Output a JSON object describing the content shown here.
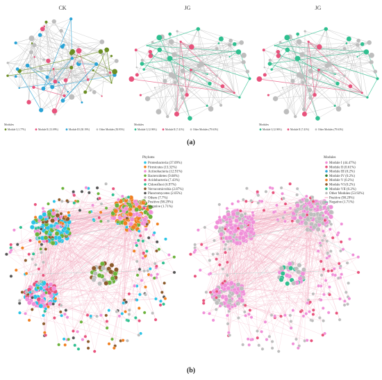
{
  "colors": {
    "gray": "#bdbdbd",
    "blue": "#29a3d6",
    "pink": "#e8527c",
    "green": "#2ebf8f",
    "olive": "#6b8e23",
    "lightpink": "#f2a3c0",
    "edge_pink": "#f0a0b8",
    "edge_teal": "#4fb9a8"
  },
  "panel_a": {
    "label": "(a)",
    "networks": [
      {
        "title": "CK",
        "legend_title": "Modules",
        "legend": [
          {
            "label": "Module I (1.77%)",
            "color": "#6b8e23"
          },
          {
            "label": "Module II (13.09%)",
            "color": "#e8527c"
          },
          {
            "label": "Module III (30.19%)",
            "color": "#29a3d6"
          },
          {
            "label": "Other Modules (50.95%)",
            "color": "#bdbdbd"
          }
        ]
      },
      {
        "title": "JG",
        "legend_title": "Modules",
        "legend": [
          {
            "label": "Module I (12.96%)",
            "color": "#2ebf8f"
          },
          {
            "label": "Module II (7.41%)",
            "color": "#e8527c"
          },
          {
            "label": "Other Modules (79.63%)",
            "color": "#bdbdbd"
          }
        ]
      },
      {
        "title": "JG",
        "legend_title": "Modules",
        "legend": [
          {
            "label": "Module I (12.96%)",
            "color": "#2ebf8f"
          },
          {
            "label": "Module II (7.41%)",
            "color": "#e8527c"
          },
          {
            "label": "Other Modules (79.63%)",
            "color": "#bdbdbd"
          }
        ]
      }
    ]
  },
  "panel_b": {
    "label": "(b)",
    "left": {
      "legend_title": "Phylums",
      "legend": [
        {
          "label": "Proteobacteria (37.09%)",
          "color": "#29c4e6"
        },
        {
          "label": "Firmicutes (13.32%)",
          "color": "#f07f20"
        },
        {
          "label": "Actinobacteria (12.91%)",
          "color": "#f08fd8"
        },
        {
          "label": "Bacteroidetes (9.68%)",
          "color": "#6ab23a"
        },
        {
          "label": "Acidobacteria (7.43%)",
          "color": "#e8527c"
        },
        {
          "label": "Chloroflexi (6.97%)",
          "color": "#2ebf8f"
        },
        {
          "label": "Verrucomicrobia (2.87%)",
          "color": "#8b5a2b"
        },
        {
          "label": "Planctomycetes (2.05%)",
          "color": "#555555"
        },
        {
          "label": "Others (7.7%)",
          "color": "#bdbdbd"
        },
        {
          "label": "Positive (98.29%)",
          "color": "#f0a0b8",
          "line": true
        },
        {
          "label": "Negative (1.71%)",
          "color": "#2ebf8f",
          "line": true
        }
      ]
    },
    "right": {
      "legend_title": "Modules",
      "legend": [
        {
          "label": "Module I (44.47%)",
          "color": "#f08fd8"
        },
        {
          "label": "Module II (0.61%)",
          "color": "#e8527c"
        },
        {
          "label": "Module III (0.2%)",
          "color": "#29a3d6"
        },
        {
          "label": "Module IV (0.2%)",
          "color": "#2e7d32"
        },
        {
          "label": "Module V (0.2%)",
          "color": "#f07f20"
        },
        {
          "label": "Module VI (0.2%)",
          "color": "#8b5a2b"
        },
        {
          "label": "Module VII (0.2%)",
          "color": "#2ebf8f"
        },
        {
          "label": "Other Modules (53.92%)",
          "color": "#bdbdbd"
        },
        {
          "label": "Positive (98.29%)",
          "color": "#f0a0b8",
          "line": true
        },
        {
          "label": "Negative (1.71%)",
          "color": "#2ebf8f",
          "line": true
        }
      ]
    }
  }
}
